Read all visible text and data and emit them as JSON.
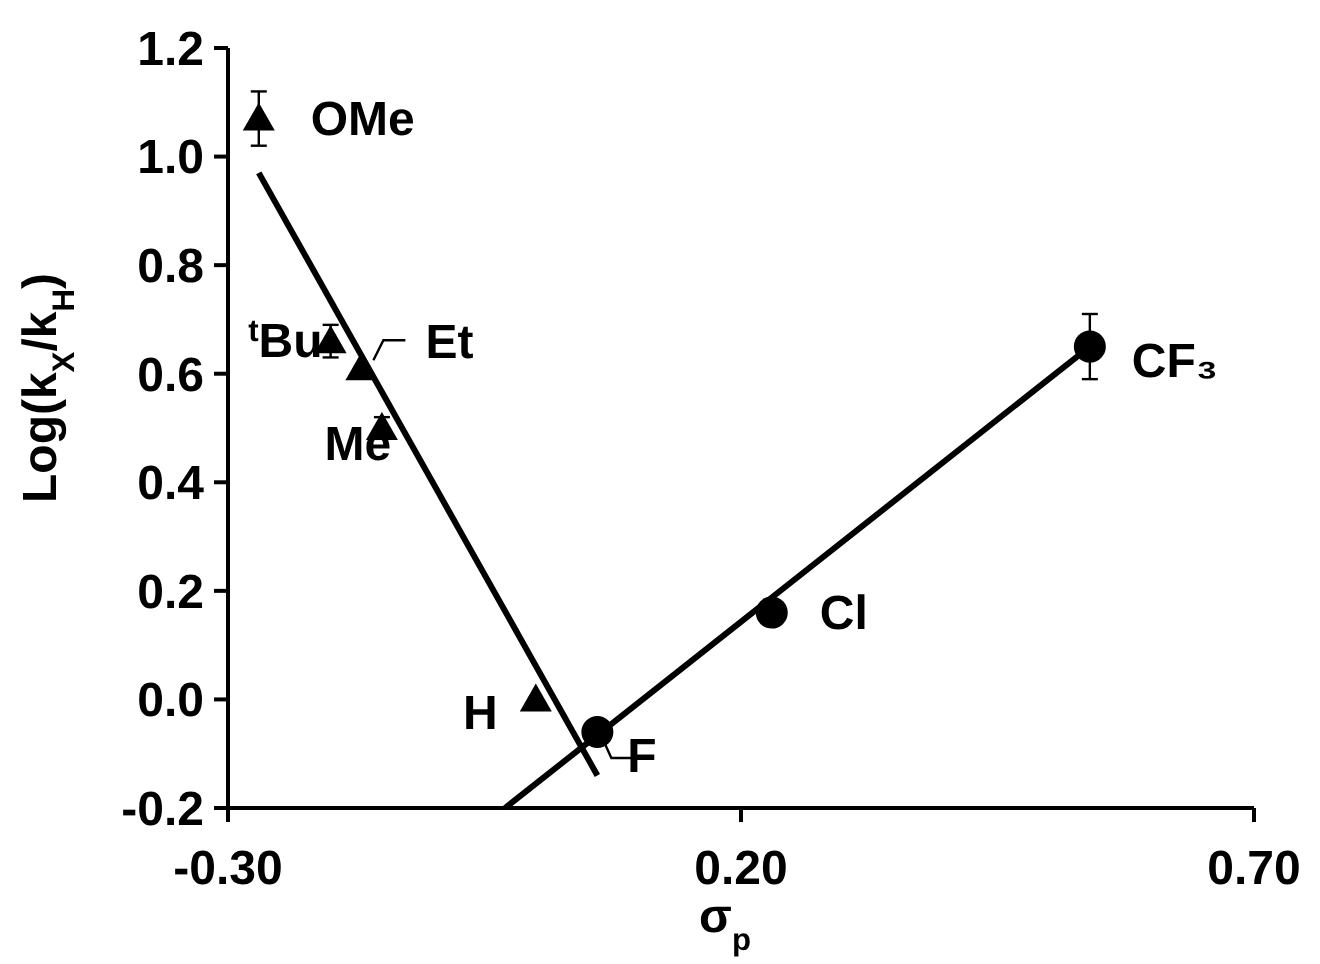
{
  "chart_data": {
    "type": "scatter",
    "xlabel": "σ$_{p}$",
    "ylabel": "Log(k$_{X}$/k$_{H}$)",
    "xlim": [
      -0.3,
      0.7
    ],
    "ylim": [
      -0.2,
      1.2
    ],
    "xticks": [
      {
        "value": -0.3,
        "label": "-0.30"
      },
      {
        "value": 0.2,
        "label": "0.20"
      },
      {
        "value": 0.7,
        "label": "0.70"
      }
    ],
    "yticks": [
      {
        "value": -0.2,
        "label": "-0.2"
      },
      {
        "value": 0,
        "label": "0.0"
      },
      {
        "value": 0.2,
        "label": "0.2"
      },
      {
        "value": 0.4,
        "label": "0.4"
      },
      {
        "value": 0.6,
        "label": "0.6"
      },
      {
        "value": 0.8,
        "label": "0.8"
      },
      {
        "value": 1,
        "label": "1.0"
      },
      {
        "value": 1.2,
        "label": "1.2"
      }
    ],
    "grid": false,
    "series": [
      {
        "marker": "triangle",
        "color": "#000000",
        "x": [
          -0.27,
          -0.2,
          -0.17,
          -0.15,
          0.0
        ],
        "values": [
          1.07,
          0.66,
          0.61,
          0.5,
          0.0
        ],
        "errors": [
          0.05,
          0.03,
          null,
          0.02,
          null
        ]
      },
      {
        "marker": "circle",
        "color": "#000000",
        "x": [
          0.06,
          0.23,
          0.54
        ],
        "values": [
          -0.06,
          0.16,
          0.65
        ],
        "errors": [
          null,
          null,
          0.06
        ]
      },
      {
        "type": "line",
        "marker": "none",
        "color": "#000000",
        "x": [
          -0.27,
          0.06
        ],
        "values": [
          0.97,
          -0.14
        ]
      },
      {
        "type": "line",
        "marker": "none",
        "color": "#000000",
        "x": [
          -0.03,
          0.54
        ],
        "values": [
          -0.2,
          0.65
        ]
      }
    ],
    "annotations": [
      {
        "text": "OMe",
        "x": -0.27,
        "y": 1.07
      },
      {
        "text": "$^{t}$Bu",
        "x": -0.2,
        "y": 0.66
      },
      {
        "text": "Et",
        "x": -0.17,
        "y": 0.61
      },
      {
        "text": "Me",
        "x": -0.15,
        "y": 0.5
      },
      {
        "text": "H",
        "x": 0.0,
        "y": 0.0
      },
      {
        "text": "F",
        "x": 0.06,
        "y": -0.06
      },
      {
        "text": "Cl",
        "x": 0.23,
        "y": 0.16
      },
      {
        "text": "CF₃",
        "x": 0.54,
        "y": 0.65
      }
    ]
  }
}
